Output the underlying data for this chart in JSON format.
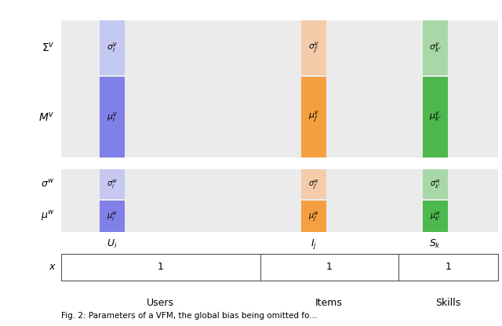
{
  "white_bg": "#ffffff",
  "panel_bg": "#ebebeb",
  "col_colors": {
    "user": {
      "light": "#c5c8f0",
      "dark": "#8080e8"
    },
    "item": {
      "light": "#f5ccaa",
      "dark": "#f5a040"
    },
    "skill": {
      "light": "#a8d8a8",
      "dark": "#4db84d"
    }
  },
  "row_labels": {
    "sigma_v": "$\\Sigma^v$",
    "mu_v": "$M^v$",
    "sigma_w": "$\\sigma^w$",
    "mu_w": "$\\mu^w$"
  },
  "cell_labels": {
    "user_sigma_v": "$\\sigma_i^v$",
    "user_mu_v": "$\\mu_i^v$",
    "user_sigma_w": "$\\sigma_i^w$",
    "user_mu_w": "$\\mu_i^w$",
    "item_sigma_v": "$\\sigma_{j'}^v$",
    "item_mu_v": "$\\mu_{j'}^v$",
    "item_sigma_w": "$\\sigma_{j'}^w$",
    "item_mu_w": "$\\mu_{j'}^w$",
    "skill_sigma_v": "$\\sigma_{k'}^v$",
    "skill_mu_v": "$\\mu_{k'}^v$",
    "skill_sigma_w": "$\\sigma_{k'}^w$",
    "skill_mu_w": "$\\mu_{k'}^w$"
  },
  "col_headers": [
    "$U_i$",
    "$I_j$",
    "$S_k$"
  ],
  "group_labels": [
    "Users",
    "Items",
    "Skills"
  ],
  "caption": "Fig. 2: Parameters of a VFM, the global bias being omitted fo..."
}
